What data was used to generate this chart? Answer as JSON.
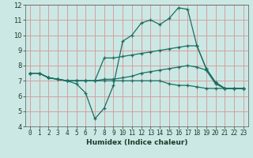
{
  "xlabel": "Humidex (Indice chaleur)",
  "xlim": [
    -0.5,
    23.5
  ],
  "ylim": [
    4,
    12
  ],
  "yticks": [
    4,
    5,
    6,
    7,
    8,
    9,
    10,
    11,
    12
  ],
  "xticks": [
    0,
    1,
    2,
    3,
    4,
    5,
    6,
    7,
    8,
    9,
    10,
    11,
    12,
    13,
    14,
    15,
    16,
    17,
    18,
    19,
    20,
    21,
    22,
    23
  ],
  "background_color": "#cce8e4",
  "grid_color": "#d4a0a0",
  "line_color": "#1a6e62",
  "lines": [
    {
      "x": [
        0,
        1,
        2,
        3,
        4,
        5,
        6,
        7,
        8,
        9,
        10,
        11,
        12,
        13,
        14,
        15,
        16,
        17,
        18,
        19,
        20,
        21,
        22,
        23
      ],
      "y": [
        7.5,
        7.5,
        7.2,
        7.1,
        7.0,
        6.8,
        6.2,
        4.5,
        5.2,
        6.7,
        9.6,
        10.0,
        10.8,
        11.0,
        10.7,
        11.1,
        11.8,
        11.7,
        9.3,
        7.8,
        6.9,
        6.5,
        6.5,
        6.5
      ]
    },
    {
      "x": [
        0,
        1,
        2,
        3,
        4,
        5,
        6,
        7,
        8,
        9,
        10,
        11,
        12,
        13,
        14,
        15,
        16,
        17,
        18,
        19,
        20,
        21,
        22,
        23
      ],
      "y": [
        7.5,
        7.5,
        7.2,
        7.1,
        7.0,
        7.0,
        7.0,
        7.0,
        8.5,
        8.5,
        8.6,
        8.7,
        8.8,
        8.9,
        9.0,
        9.1,
        9.2,
        9.3,
        9.3,
        7.8,
        6.9,
        6.5,
        6.5,
        6.5
      ]
    },
    {
      "x": [
        0,
        1,
        2,
        3,
        4,
        5,
        6,
        7,
        8,
        9,
        10,
        11,
        12,
        13,
        14,
        15,
        16,
        17,
        18,
        19,
        20,
        21,
        22,
        23
      ],
      "y": [
        7.5,
        7.5,
        7.2,
        7.1,
        7.0,
        7.0,
        7.0,
        7.0,
        7.1,
        7.1,
        7.2,
        7.3,
        7.5,
        7.6,
        7.7,
        7.8,
        7.9,
        8.0,
        7.9,
        7.7,
        6.8,
        6.5,
        6.5,
        6.5
      ]
    },
    {
      "comment": "bottom line ~6.5-7.5",
      "x": [
        0,
        1,
        2,
        3,
        4,
        5,
        6,
        7,
        8,
        9,
        10,
        11,
        12,
        13,
        14,
        15,
        16,
        17,
        18,
        19,
        20,
        21,
        22,
        23
      ],
      "y": [
        7.5,
        7.5,
        7.2,
        7.1,
        7.0,
        7.0,
        7.0,
        7.0,
        7.0,
        7.0,
        7.0,
        7.0,
        7.0,
        7.0,
        7.0,
        6.8,
        6.7,
        6.7,
        6.6,
        6.5,
        6.5,
        6.5,
        6.5,
        6.5
      ]
    }
  ]
}
